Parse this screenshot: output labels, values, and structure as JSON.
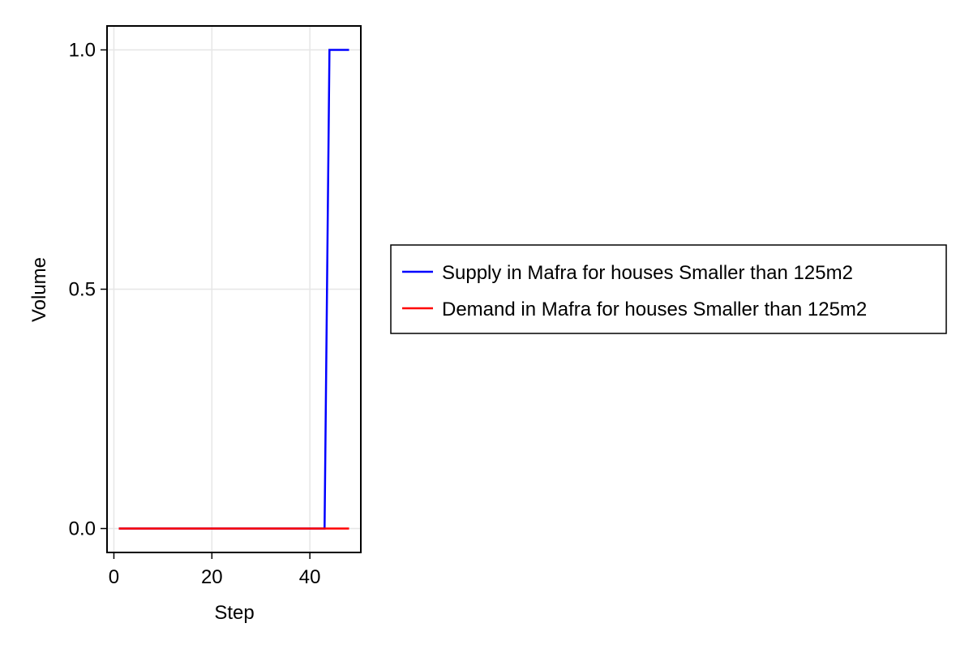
{
  "chart_data": {
    "type": "line",
    "xlabel": "Step",
    "ylabel": "Volume",
    "xlim": [
      -1.4,
      50.4
    ],
    "ylim": [
      -0.05,
      1.05
    ],
    "xticks": [
      0,
      20,
      40
    ],
    "yticks": [
      0.0,
      0.5,
      1.0
    ],
    "xtick_labels": [
      "0",
      "20",
      "40"
    ],
    "ytick_labels": [
      "0.0",
      "0.5",
      "1.0"
    ],
    "grid": true,
    "legend_position": "right",
    "series": [
      {
        "name": "Supply in Mafra for houses Smaller than 125m2",
        "color": "#0000ff",
        "x": [
          1,
          43,
          44,
          48
        ],
        "y": [
          0,
          0,
          1,
          1
        ]
      },
      {
        "name": "Demand in Mafra for houses Smaller than 125m2",
        "color": "#ff0000",
        "x": [
          1,
          48
        ],
        "y": [
          0,
          0
        ]
      }
    ]
  }
}
